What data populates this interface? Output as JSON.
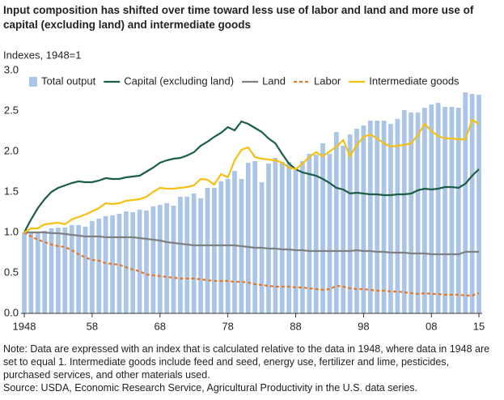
{
  "chart_data": {
    "type": "bar-line",
    "title": "Input composition has shifted over time toward less use of labor and land and more use of capital (excluding land) and intermediate goods",
    "y_label": "Indexes, 1948=1",
    "note": "Note: Data are expressed with an index that is calculated relative to the data in 1948, where data in 1948 are set to equal 1. Intermediate goods include feed and seed, energy use, fertilizer and lime, pesticides, purchased services, and other materials used.",
    "source": "Source: USDA, Economic Research Service, Agricultural Productivity in the U.S. data series.",
    "x": [
      1948,
      1949,
      1950,
      1951,
      1952,
      1953,
      1954,
      1955,
      1956,
      1957,
      1958,
      1959,
      1960,
      1961,
      1962,
      1963,
      1964,
      1965,
      1966,
      1967,
      1968,
      1969,
      1970,
      1971,
      1972,
      1973,
      1974,
      1975,
      1976,
      1977,
      1978,
      1979,
      1980,
      1981,
      1982,
      1983,
      1984,
      1985,
      1986,
      1987,
      1988,
      1989,
      1990,
      1991,
      1992,
      1993,
      1994,
      1995,
      1996,
      1997,
      1998,
      1999,
      2000,
      2001,
      2002,
      2003,
      2004,
      2005,
      2006,
      2007,
      2008,
      2009,
      2010,
      2011,
      2012,
      2013,
      2014,
      2015
    ],
    "xlim": [
      1948,
      2015
    ],
    "xticks": [
      1948,
      {
        "value": 1958,
        "label": "58"
      },
      {
        "value": 1968,
        "label": "68"
      },
      {
        "value": 1978,
        "label": "78"
      },
      {
        "value": 1988,
        "label": "88"
      },
      {
        "value": 1998,
        "label": "98"
      },
      {
        "value": 2008,
        "label": "08"
      },
      {
        "value": 2015,
        "label": "15"
      }
    ],
    "ylim": [
      0,
      3
    ],
    "yticks": [
      {
        "value": 0,
        "label": "0.0"
      },
      {
        "value": 0.5,
        "label": "0.5"
      },
      {
        "value": 1,
        "label": "1.0"
      },
      {
        "value": 1.5,
        "label": "1.5"
      },
      {
        "value": 2,
        "label": "2.0"
      },
      {
        "value": 2.5,
        "label": "2.5"
      },
      {
        "value": 3,
        "label": "3.0"
      }
    ],
    "grid": false,
    "legend": "top",
    "series": [
      {
        "name": "Total output",
        "type": "bar",
        "color": "#aac5e8",
        "values": [
          1.0,
          1.0,
          0.99,
          1.02,
          1.05,
          1.06,
          1.06,
          1.09,
          1.09,
          1.07,
          1.14,
          1.17,
          1.2,
          1.21,
          1.23,
          1.26,
          1.25,
          1.28,
          1.27,
          1.32,
          1.34,
          1.36,
          1.33,
          1.44,
          1.44,
          1.48,
          1.42,
          1.55,
          1.55,
          1.63,
          1.66,
          1.76,
          1.66,
          1.86,
          1.88,
          1.62,
          1.85,
          1.92,
          1.87,
          1.87,
          1.77,
          1.88,
          1.97,
          1.96,
          2.1,
          1.97,
          2.24,
          2.07,
          2.21,
          2.28,
          2.32,
          2.38,
          2.38,
          2.38,
          2.34,
          2.4,
          2.51,
          2.48,
          2.48,
          2.54,
          2.58,
          2.6,
          2.55,
          2.55,
          2.54,
          2.73,
          2.71,
          2.7
        ]
      },
      {
        "name": "Capital (excluding land)",
        "type": "line",
        "color": "#1b5e45",
        "values": [
          1.0,
          1.16,
          1.3,
          1.41,
          1.5,
          1.55,
          1.58,
          1.61,
          1.63,
          1.62,
          1.62,
          1.64,
          1.67,
          1.66,
          1.66,
          1.68,
          1.69,
          1.7,
          1.75,
          1.8,
          1.86,
          1.89,
          1.91,
          1.92,
          1.95,
          1.99,
          2.07,
          2.12,
          2.18,
          2.23,
          2.3,
          2.26,
          2.37,
          2.34,
          2.29,
          2.24,
          2.16,
          2.1,
          1.97,
          1.85,
          1.78,
          1.74,
          1.72,
          1.7,
          1.66,
          1.61,
          1.55,
          1.53,
          1.48,
          1.49,
          1.48,
          1.47,
          1.47,
          1.46,
          1.46,
          1.47,
          1.47,
          1.48,
          1.52,
          1.54,
          1.53,
          1.54,
          1.56,
          1.56,
          1.55,
          1.6,
          1.7,
          1.78
        ]
      },
      {
        "name": "Land",
        "type": "line",
        "color": "#808080",
        "values": [
          1.0,
          1.0,
          1.0,
          1.0,
          0.99,
          0.99,
          0.98,
          0.97,
          0.96,
          0.95,
          0.95,
          0.95,
          0.94,
          0.94,
          0.94,
          0.94,
          0.94,
          0.93,
          0.92,
          0.91,
          0.9,
          0.88,
          0.87,
          0.86,
          0.85,
          0.84,
          0.84,
          0.84,
          0.84,
          0.84,
          0.84,
          0.84,
          0.83,
          0.82,
          0.81,
          0.81,
          0.8,
          0.8,
          0.79,
          0.79,
          0.78,
          0.78,
          0.77,
          0.77,
          0.77,
          0.77,
          0.77,
          0.77,
          0.77,
          0.78,
          0.77,
          0.77,
          0.76,
          0.76,
          0.75,
          0.75,
          0.75,
          0.74,
          0.74,
          0.74,
          0.73,
          0.73,
          0.73,
          0.73,
          0.73,
          0.76,
          0.76,
          0.76
        ]
      },
      {
        "name": "Labor",
        "type": "line",
        "dashed": true,
        "color": "#e87722",
        "values": [
          1.0,
          0.95,
          0.91,
          0.88,
          0.85,
          0.83,
          0.82,
          0.78,
          0.73,
          0.69,
          0.66,
          0.65,
          0.62,
          0.61,
          0.6,
          0.57,
          0.54,
          0.52,
          0.48,
          0.47,
          0.46,
          0.45,
          0.44,
          0.43,
          0.43,
          0.43,
          0.42,
          0.41,
          0.4,
          0.4,
          0.4,
          0.39,
          0.39,
          0.38,
          0.36,
          0.35,
          0.34,
          0.33,
          0.33,
          0.33,
          0.32,
          0.32,
          0.31,
          0.3,
          0.29,
          0.3,
          0.34,
          0.33,
          0.31,
          0.3,
          0.3,
          0.29,
          0.28,
          0.28,
          0.27,
          0.27,
          0.26,
          0.25,
          0.24,
          0.25,
          0.24,
          0.24,
          0.23,
          0.23,
          0.23,
          0.22,
          0.22,
          0.25
        ]
      },
      {
        "name": "Intermediate goods",
        "type": "line",
        "color": "#f5c014",
        "values": [
          1.0,
          1.05,
          1.05,
          1.1,
          1.11,
          1.12,
          1.1,
          1.16,
          1.19,
          1.22,
          1.26,
          1.3,
          1.36,
          1.35,
          1.36,
          1.39,
          1.4,
          1.41,
          1.44,
          1.5,
          1.55,
          1.54,
          1.54,
          1.55,
          1.56,
          1.58,
          1.66,
          1.65,
          1.59,
          1.72,
          1.68,
          1.89,
          2.02,
          2.05,
          1.93,
          1.91,
          1.9,
          1.89,
          1.86,
          1.8,
          1.78,
          1.85,
          1.93,
          1.99,
          1.94,
          2.0,
          2.06,
          2.14,
          1.94,
          2.08,
          2.18,
          2.21,
          2.16,
          2.1,
          2.06,
          2.07,
          2.08,
          2.1,
          2.2,
          2.34,
          2.25,
          2.19,
          2.16,
          2.16,
          2.15,
          2.15,
          2.39,
          2.34
        ]
      }
    ]
  }
}
